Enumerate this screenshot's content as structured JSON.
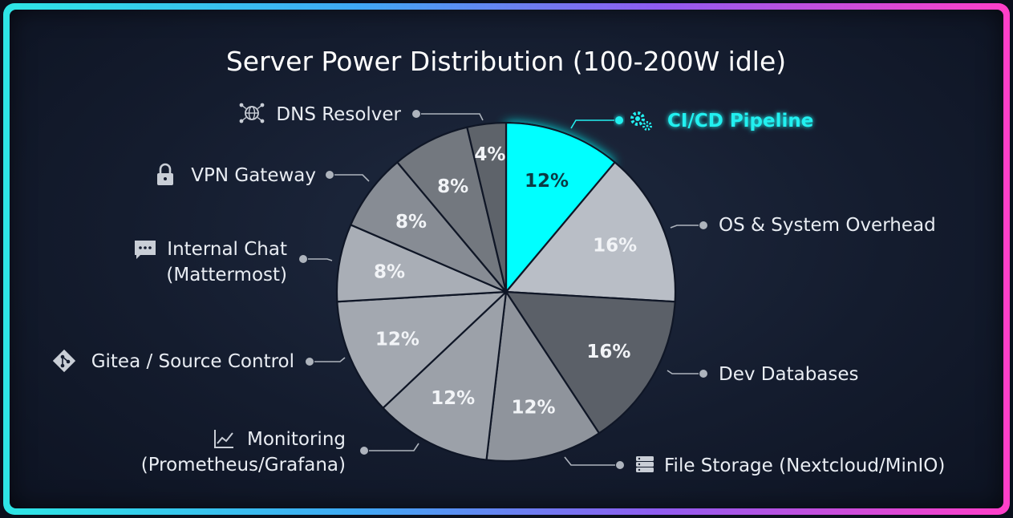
{
  "chart_data": {
    "type": "pie",
    "title": "Server Power Distribution (100-200W idle)",
    "unit": "%",
    "slices": [
      {
        "label": "CI/CD Pipeline",
        "value": 12,
        "display": "12%",
        "color": "#00ffff",
        "highlight": true,
        "icon": "gears-icon"
      },
      {
        "label": "OS & System Overhead",
        "value": 16,
        "display": "16%",
        "color": "#b9bec6",
        "icon": ""
      },
      {
        "label": "Dev Databases",
        "value": 16,
        "display": "16%",
        "color": "#5b6068",
        "icon": ""
      },
      {
        "label": "File Storage (Nextcloud/MinIO)",
        "value": 12,
        "display": "12%",
        "color": "#8f949c",
        "icon": "server-icon"
      },
      {
        "label": "Monitoring (Prometheus/Grafana)",
        "value": 12,
        "display": "12%",
        "color": "#9ca1a9",
        "icon": "chart-icon"
      },
      {
        "label": "Gitea / Source Control",
        "value": 12,
        "display": "12%",
        "color": "#a3a8b0",
        "icon": "git-icon"
      },
      {
        "label": "Internal Chat (Mattermost)",
        "value": 8,
        "display": "8%",
        "color": "#a9aeb6",
        "icon": "chat-icon"
      },
      {
        "label": "VPN Gateway",
        "value": 8,
        "display": "8%",
        "color": "#878c94",
        "icon": "lock-icon"
      },
      {
        "label": "DNS Resolver",
        "value": 8,
        "display": "8%",
        "color": "#73787f",
        "icon": "globe-network-icon"
      },
      {
        "label": "",
        "value": 4,
        "display": "4%",
        "color": "#5e636a",
        "icon": ""
      }
    ]
  }
}
